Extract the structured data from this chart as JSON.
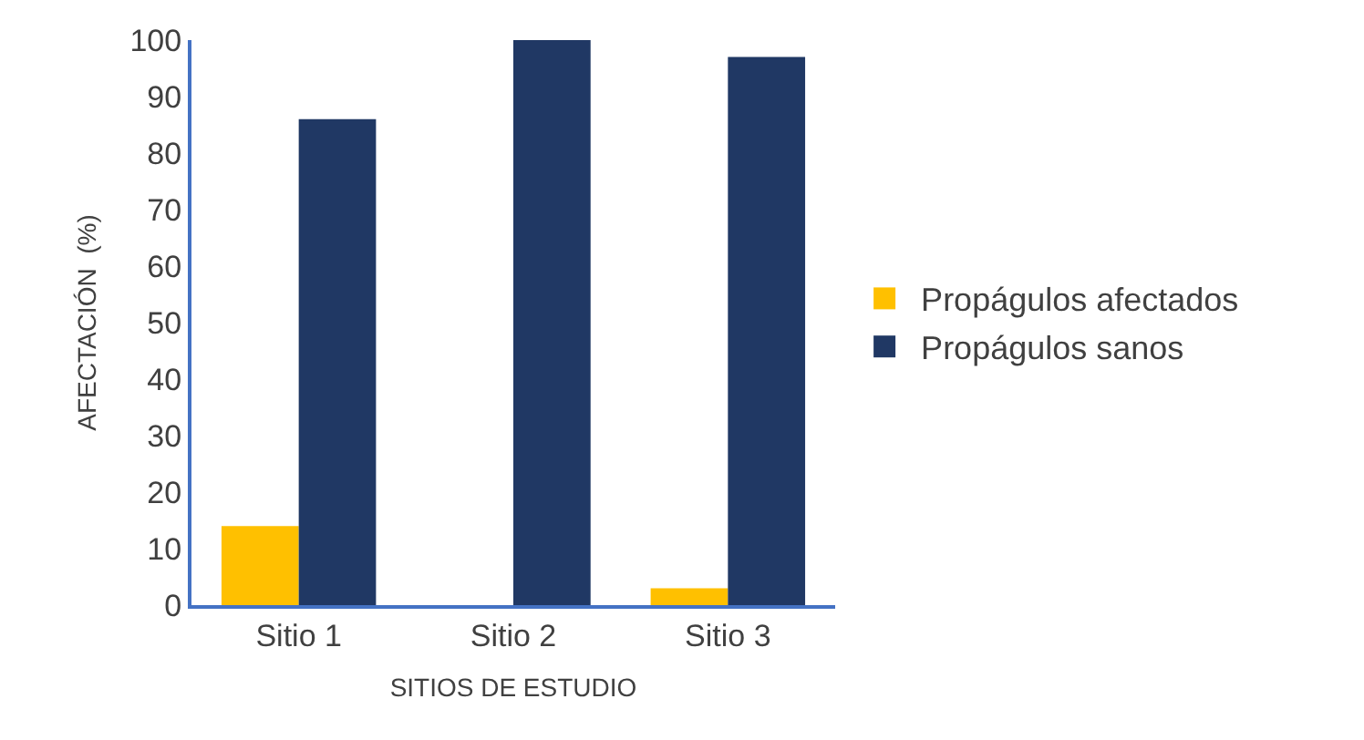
{
  "chart_data": {
    "type": "bar",
    "xlabel": "SITIOS DE ESTUDIO",
    "ylabel": "AFECTACIÓN  (%)",
    "categories": [
      "Sitio 1",
      "Sitio 2",
      "Sitio 3"
    ],
    "series": [
      {
        "name": "Propágulos afectados",
        "color": "#ffc000",
        "values": [
          14,
          0,
          3
        ]
      },
      {
        "name": "Propágulos sanos",
        "color": "#203864",
        "values": [
          86,
          100,
          97
        ]
      }
    ],
    "ylim": [
      0,
      100
    ],
    "yticks": [
      0,
      10,
      20,
      30,
      40,
      50,
      60,
      70,
      80,
      90,
      100
    ],
    "legend": "right"
  }
}
